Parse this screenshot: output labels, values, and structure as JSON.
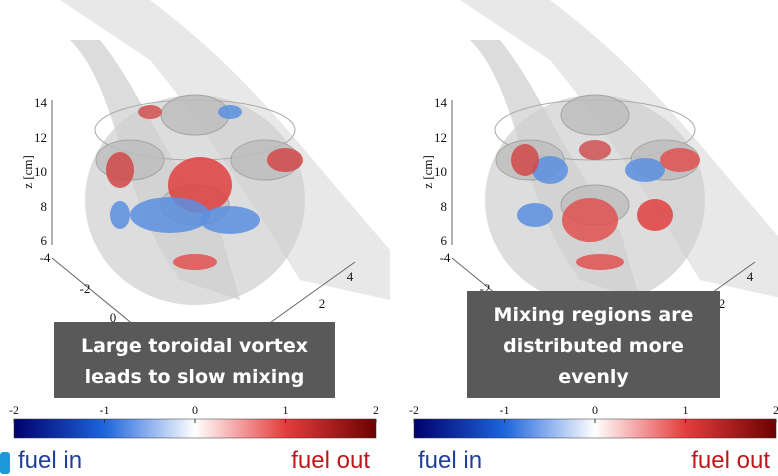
{
  "panels": [
    {
      "z_axis_label": "z [cm]",
      "z_ticks": [
        14,
        12,
        10,
        8,
        6
      ],
      "x_ticks": [
        -4,
        -2,
        0
      ],
      "y_ticks": [
        2,
        4
      ],
      "callout": [
        "Large toroidal vortex",
        "leads to slow mixing"
      ],
      "colorbar": {
        "ticks": [
          -2,
          -1,
          0,
          1,
          2
        ],
        "left_label": "fuel in",
        "right_label": "fuel out"
      }
    },
    {
      "z_axis_label": "z [cm]",
      "z_ticks": [
        14,
        12,
        10,
        8,
        6
      ],
      "x_ticks": [
        -4,
        -2
      ],
      "y_ticks": [
        2,
        4
      ],
      "callout": [
        "Mixing regions are",
        "distributed more",
        "evenly"
      ],
      "colorbar": {
        "ticks": [
          -2,
          -1,
          0,
          1,
          2
        ],
        "left_label": "fuel in",
        "right_label": "fuel out"
      }
    }
  ]
}
